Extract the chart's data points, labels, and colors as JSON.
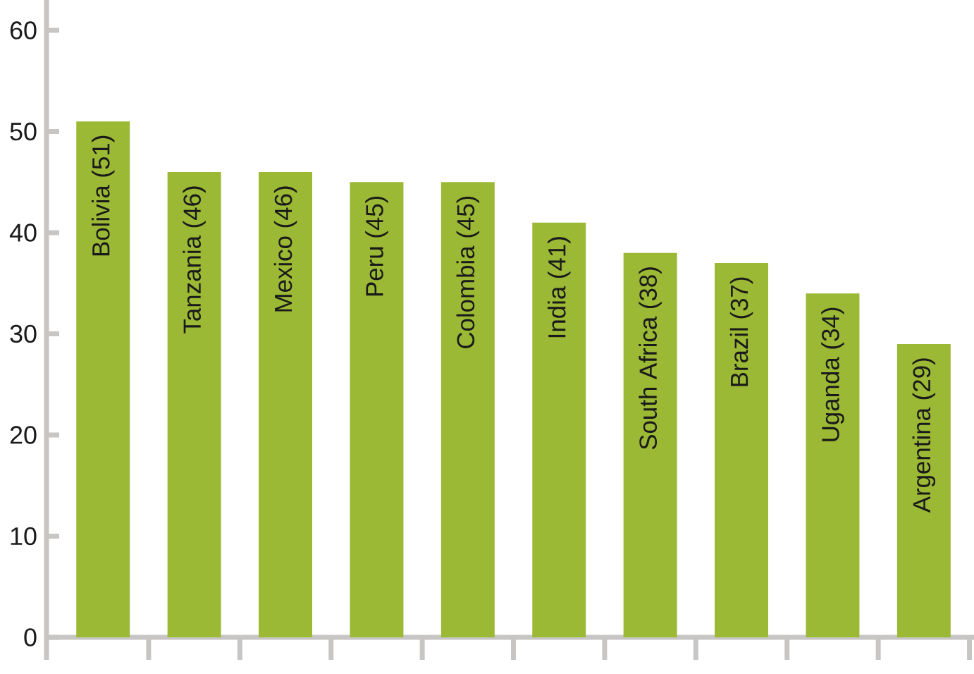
{
  "chart_data": {
    "type": "bar",
    "categories": [
      "Bolivia (51)",
      "Tanzania (46)",
      "Mexico (46)",
      "Peru (45)",
      "Colombia (45)",
      "India (41)",
      "South Africa (38)",
      "Brazil (37)",
      "Uganda (34)",
      "Argentina (29)"
    ],
    "values": [
      51,
      46,
      46,
      45,
      45,
      41,
      38,
      37,
      34,
      29
    ],
    "color": "#9bb935",
    "ylim": [
      0,
      63
    ],
    "yticks": [
      0,
      10,
      20,
      30,
      40,
      50,
      60
    ]
  }
}
